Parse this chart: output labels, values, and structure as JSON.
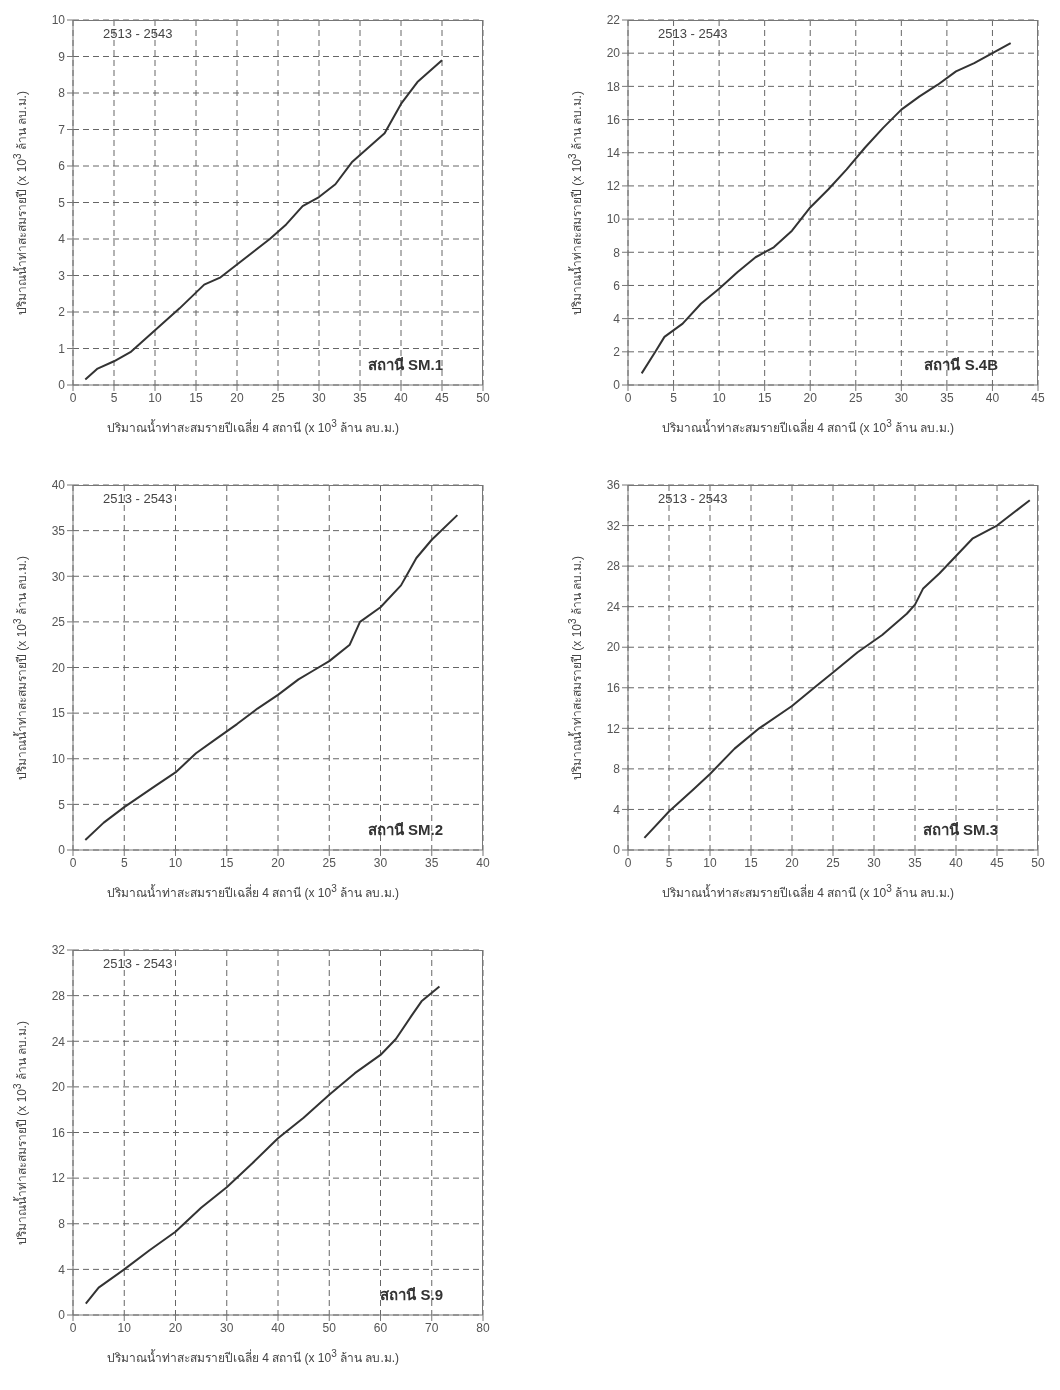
{
  "chart_data": [
    {
      "type": "line",
      "xlabel": "ปริมาณน้ำท่าสะสมรายปีเฉลี่ย 4 สถานี (x 10$^{3}$ ล้าน ลบ.ม.)",
      "ylabel": "ปริมาณน้ำท่าสะสมรายปี (x 10$^{3}$ ล้าน ลบ.ม.)",
      "annotations": [
        "2513 - 2543",
        "สถานี SM.1"
      ],
      "x": [
        1.5,
        3,
        5,
        7,
        10,
        13,
        16,
        18,
        20,
        22,
        24,
        26,
        28,
        30,
        32,
        34,
        36,
        38,
        40,
        42,
        45
      ],
      "series": [
        {
          "color": "#333333",
          "values": [
            0.15,
            0.45,
            0.65,
            0.9,
            1.5,
            2.1,
            2.75,
            2.95,
            3.3,
            3.65,
            4.0,
            4.4,
            4.9,
            5.15,
            5.5,
            6.1,
            6.5,
            6.9,
            7.7,
            8.3,
            8.9
          ]
        }
      ],
      "xlim": [
        0,
        50
      ],
      "xticks": [
        0,
        5,
        10,
        15,
        20,
        25,
        30,
        35,
        40,
        45,
        50
      ],
      "ylim": [
        0,
        10
      ],
      "yticks": [
        0,
        1,
        2,
        3,
        4,
        5,
        6,
        7,
        8,
        9,
        10
      ],
      "grid": true,
      "marker": "none",
      "line_style": "solid"
    },
    {
      "type": "line",
      "xlabel": "ปริมาณน้ำท่าสะสมรายปีเฉลี่ย 4 สถานี (x 10$^{3}$ ล้าน ลบ.ม.)",
      "ylabel": "ปริมาณน้ำท่าสะสมรายปี (x 10$^{3}$ ล้าน ลบ.ม.)",
      "annotations": [
        "2513 - 2543",
        "สถานี S.4B"
      ],
      "x": [
        1.5,
        3,
        4,
        6,
        8,
        10,
        12,
        14,
        16,
        18,
        20,
        22,
        24,
        26,
        28,
        30,
        32,
        34,
        36,
        38,
        40,
        42
      ],
      "series": [
        {
          "color": "#333333",
          "values": [
            0.7,
            2.0,
            2.9,
            3.7,
            4.9,
            5.8,
            6.8,
            7.7,
            8.3,
            9.3,
            10.7,
            11.8,
            13.0,
            14.3,
            15.5,
            16.6,
            17.4,
            18.1,
            18.9,
            19.4,
            20.0,
            20.6
          ]
        }
      ],
      "xlim": [
        0,
        45
      ],
      "xticks": [
        0,
        5,
        10,
        15,
        20,
        25,
        30,
        35,
        40,
        45
      ],
      "ylim": [
        0,
        22
      ],
      "yticks": [
        0,
        2,
        4,
        6,
        8,
        10,
        12,
        14,
        16,
        18,
        20,
        22
      ],
      "grid": true,
      "marker": "none",
      "line_style": "solid"
    },
    {
      "type": "line",
      "xlabel": "ปริมาณน้ำท่าสะสมรายปีเฉลี่ย 4 สถานี (x 10$^{3}$ ล้าน ลบ.ม.)",
      "ylabel": "ปริมาณน้ำท่าสะสมรายปี (x 10$^{3}$ ล้าน ลบ.ม.)",
      "annotations": [
        "2513 - 2543",
        "สถานี SM.2"
      ],
      "x": [
        1.2,
        3,
        5,
        8,
        10,
        12,
        14,
        16,
        18,
        20,
        22,
        23.5,
        25,
        27,
        28,
        30,
        32,
        33.5,
        35,
        37.5
      ],
      "series": [
        {
          "color": "#333333",
          "values": [
            1.1,
            3,
            4.7,
            7,
            8.5,
            10.6,
            12.2,
            13.8,
            15.5,
            17.0,
            18.7,
            19.7,
            20.7,
            22.5,
            25,
            26.6,
            29,
            32,
            34,
            36.7
          ]
        }
      ],
      "xlim": [
        0,
        40
      ],
      "xticks": [
        0,
        5,
        10,
        15,
        20,
        25,
        30,
        35,
        40
      ],
      "ylim": [
        0,
        40
      ],
      "yticks": [
        0,
        5,
        10,
        15,
        20,
        25,
        30,
        35,
        40
      ],
      "grid": true,
      "marker": "none",
      "line_style": "solid"
    },
    {
      "type": "line",
      "xlabel": "ปริมาณน้ำท่าสะสมรายปีเฉลี่ย 4 สถานี (x 10$^{3}$ ล้าน ลบ.ม.)",
      "ylabel": "ปริมาณน้ำท่าสะสมรายปี (x 10$^{3}$ ล้าน ลบ.ม.)",
      "annotations": [
        "2513 - 2543",
        "สถานี SM.3"
      ],
      "x": [
        2,
        5,
        8,
        10,
        13,
        16,
        20,
        23,
        25,
        28,
        31,
        34,
        35,
        36,
        38,
        40,
        42,
        45,
        49
      ],
      "series": [
        {
          "color": "#333333",
          "values": [
            1.2,
            3.8,
            6,
            7.5,
            10,
            12,
            14.2,
            16.2,
            17.5,
            19.5,
            21.2,
            23.3,
            24.2,
            25.8,
            27.3,
            29,
            30.7,
            32,
            34.5
          ]
        }
      ],
      "xlim": [
        0,
        50
      ],
      "xticks": [
        0,
        5,
        10,
        15,
        20,
        25,
        30,
        35,
        40,
        45,
        50
      ],
      "ylim": [
        0,
        36
      ],
      "yticks": [
        0,
        4,
        8,
        12,
        16,
        20,
        24,
        28,
        32,
        36
      ],
      "grid": true,
      "marker": "none",
      "line_style": "solid"
    },
    {
      "type": "line",
      "xlabel": "ปริมาณน้ำท่าสะสมรายปีเฉลี่ย 4 สถานี (x 10$^{3}$ ล้าน ลบ.ม.)",
      "ylabel": "ปริมาณน้ำท่าสะสมรายปี (x 10$^{3}$ ล้าน ลบ.ม.)",
      "annotations": [
        "2513 - 2543",
        "สถานี S.9"
      ],
      "x": [
        2.5,
        5,
        10,
        15,
        20,
        25,
        30,
        35,
        40,
        45,
        50,
        55,
        60,
        63,
        66,
        68,
        71.5
      ],
      "series": [
        {
          "color": "#333333",
          "values": [
            1,
            2.4,
            4,
            5.7,
            7.3,
            9.4,
            11.2,
            13.3,
            15.5,
            17.3,
            19.3,
            21.2,
            22.8,
            24.2,
            26.2,
            27.5,
            28.8
          ]
        }
      ],
      "xlim": [
        0,
        80
      ],
      "xticks": [
        0,
        10,
        20,
        30,
        40,
        50,
        60,
        70,
        80
      ],
      "ylim": [
        0,
        32
      ],
      "yticks": [
        0,
        4,
        8,
        12,
        16,
        20,
        24,
        28,
        32
      ],
      "grid": true,
      "marker": "none",
      "line_style": "solid"
    }
  ]
}
